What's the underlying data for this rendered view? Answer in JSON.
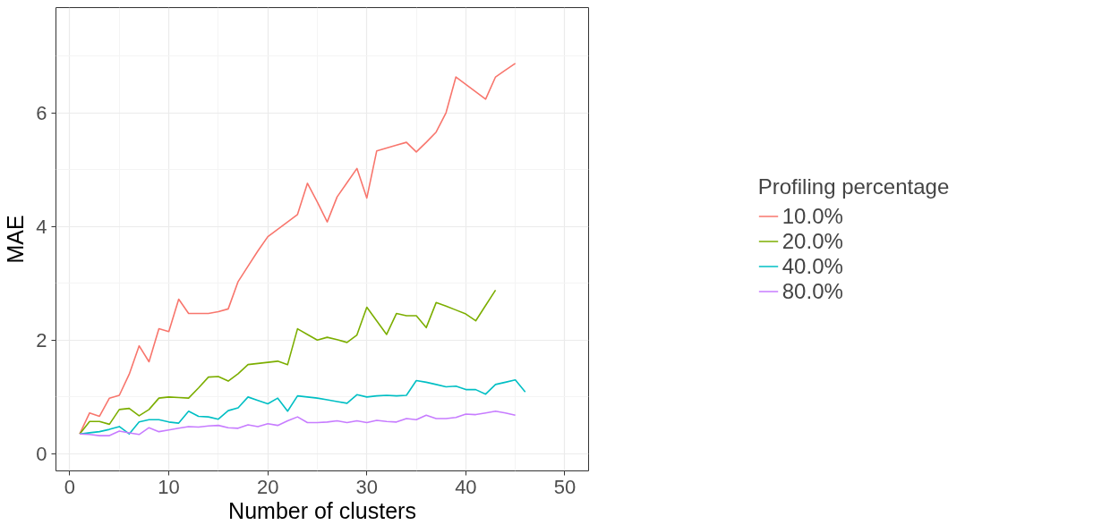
{
  "chart_data": {
    "type": "line",
    "xlabel": "Number of clusters",
    "ylabel": "MAE",
    "legend_title": "Profiling percentage",
    "legend": "right",
    "grid": true,
    "xlim": [
      -1.4,
      52.4
    ],
    "xticks": [
      0,
      10,
      20,
      30,
      40,
      50
    ],
    "ylim": [
      -0.3,
      7.85
    ],
    "yticks": [
      0,
      2,
      4,
      6
    ],
    "series": [
      {
        "name": "10.0%",
        "color": "#f8766d",
        "x": [
          1,
          2,
          3,
          4,
          5,
          6,
          7,
          8,
          9,
          10,
          11,
          12,
          13,
          14,
          15,
          16,
          17,
          18,
          19,
          20,
          21,
          22,
          23,
          24,
          25,
          26,
          27,
          28,
          29,
          30,
          31,
          32,
          33,
          34,
          35,
          36,
          37,
          38,
          39,
          40,
          41,
          42,
          43,
          44,
          45
        ],
        "values": [
          0.35,
          0.72,
          0.66,
          0.98,
          1.03,
          1.4,
          1.9,
          1.62,
          2.2,
          2.15,
          2.72,
          2.47,
          2.47,
          2.47,
          2.5,
          2.55,
          3.03,
          3.3,
          3.57,
          3.82,
          3.95,
          4.08,
          4.21,
          4.76,
          4.43,
          4.08,
          4.52,
          4.77,
          5.02,
          4.5,
          5.33,
          5.38,
          5.43,
          5.48,
          5.31,
          5.48,
          5.66,
          6.0,
          6.63,
          6.5,
          6.37,
          6.24,
          6.63,
          6.75,
          6.87
        ]
      },
      {
        "name": "20.0%",
        "color": "#7cae00",
        "x": [
          1,
          2,
          3,
          4,
          5,
          6,
          7,
          8,
          9,
          10,
          11,
          12,
          13,
          14,
          15,
          16,
          17,
          18,
          19,
          20,
          21,
          22,
          23,
          24,
          25,
          26,
          27,
          28,
          29,
          30,
          31,
          32,
          33,
          34,
          35,
          36,
          37,
          38,
          39,
          40,
          41,
          42,
          43
        ],
        "values": [
          0.35,
          0.57,
          0.57,
          0.52,
          0.78,
          0.8,
          0.67,
          0.78,
          0.98,
          1.0,
          0.99,
          0.98,
          1.16,
          1.35,
          1.36,
          1.28,
          1.41,
          1.57,
          1.59,
          1.61,
          1.63,
          1.57,
          2.2,
          2.1,
          2.0,
          2.05,
          2.01,
          1.96,
          2.09,
          2.58,
          2.34,
          2.1,
          2.47,
          2.43,
          2.43,
          2.22,
          2.66,
          2.6,
          2.53,
          2.46,
          2.34,
          2.61,
          2.88
        ]
      },
      {
        "name": "40.0%",
        "color": "#00bfc4",
        "x": [
          1,
          2,
          3,
          4,
          5,
          6,
          7,
          8,
          9,
          10,
          11,
          12,
          13,
          14,
          15,
          16,
          17,
          18,
          19,
          20,
          21,
          22,
          23,
          24,
          25,
          26,
          27,
          28,
          29,
          30,
          31,
          32,
          33,
          34,
          35,
          36,
          37,
          38,
          39,
          40,
          41,
          42,
          43,
          44,
          45,
          46
        ],
        "values": [
          0.35,
          0.37,
          0.39,
          0.43,
          0.48,
          0.35,
          0.56,
          0.6,
          0.6,
          0.56,
          0.54,
          0.75,
          0.66,
          0.65,
          0.61,
          0.76,
          0.81,
          1.0,
          0.94,
          0.88,
          0.98,
          0.75,
          1.02,
          1.0,
          0.98,
          0.95,
          0.92,
          0.89,
          1.04,
          1.0,
          1.02,
          1.03,
          1.02,
          1.03,
          1.29,
          1.26,
          1.22,
          1.18,
          1.19,
          1.13,
          1.13,
          1.05,
          1.22,
          1.26,
          1.3,
          1.09
        ]
      },
      {
        "name": "80.0%",
        "color": "#c77cff",
        "x": [
          1,
          2,
          3,
          4,
          5,
          6,
          7,
          8,
          9,
          10,
          11,
          12,
          13,
          14,
          15,
          16,
          17,
          18,
          19,
          20,
          21,
          22,
          23,
          24,
          25,
          26,
          27,
          28,
          29,
          30,
          31,
          32,
          33,
          34,
          35,
          36,
          37,
          38,
          39,
          40,
          41,
          42,
          43,
          44,
          45
        ],
        "values": [
          0.35,
          0.34,
          0.32,
          0.32,
          0.4,
          0.37,
          0.34,
          0.46,
          0.39,
          0.42,
          0.45,
          0.48,
          0.47,
          0.49,
          0.5,
          0.46,
          0.45,
          0.51,
          0.48,
          0.53,
          0.5,
          0.58,
          0.65,
          0.55,
          0.55,
          0.56,
          0.58,
          0.55,
          0.58,
          0.55,
          0.59,
          0.57,
          0.56,
          0.62,
          0.6,
          0.68,
          0.62,
          0.62,
          0.64,
          0.7,
          0.69,
          0.72,
          0.75,
          0.72,
          0.68
        ]
      }
    ]
  }
}
